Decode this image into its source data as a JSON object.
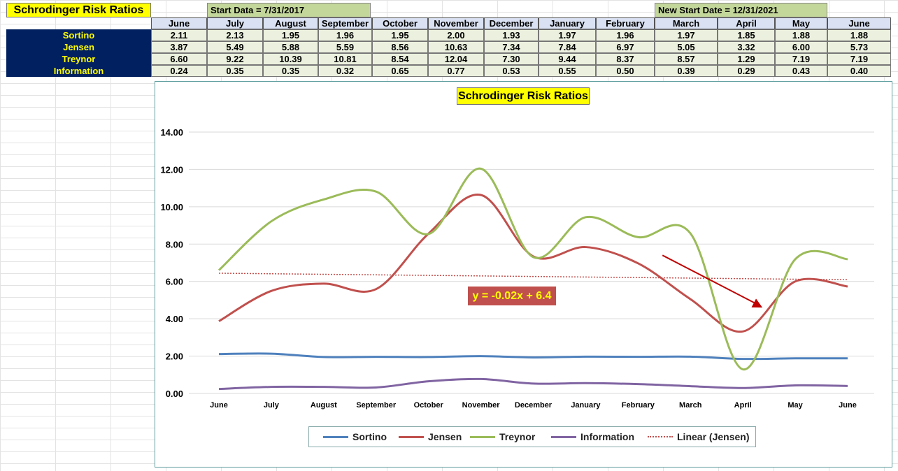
{
  "sheet": {
    "title": "Schrodinger Risk Ratios",
    "start_note": "Start Data = 7/31/2017",
    "new_start_note": "New Start Date = 12/31/2021",
    "months": [
      "June",
      "July",
      "August",
      "September",
      "October",
      "November",
      "December",
      "January",
      "February",
      "March",
      "April",
      "May",
      "June"
    ],
    "rows": [
      {
        "label": "Sortino",
        "values": [
          "2.11",
          "2.13",
          "1.95",
          "1.96",
          "1.95",
          "2.00",
          "1.93",
          "1.97",
          "1.96",
          "1.97",
          "1.85",
          "1.88",
          "1.88"
        ]
      },
      {
        "label": "Jensen",
        "values": [
          "3.87",
          "5.49",
          "5.88",
          "5.59",
          "8.56",
          "10.63",
          "7.34",
          "7.84",
          "6.97",
          "5.05",
          "3.32",
          "6.00",
          "5.73"
        ]
      },
      {
        "label": "Treynor",
        "values": [
          "6.60",
          "9.22",
          "10.39",
          "10.81",
          "8.54",
          "12.04",
          "7.30",
          "9.44",
          "8.37",
          "8.57",
          "1.29",
          "7.19",
          "7.19"
        ]
      },
      {
        "label": "Information",
        "values": [
          "0.24",
          "0.35",
          "0.35",
          "0.32",
          "0.65",
          "0.77",
          "0.53",
          "0.55",
          "0.50",
          "0.39",
          "0.29",
          "0.43",
          "0.40"
        ]
      }
    ]
  },
  "chart_data": {
    "type": "line",
    "title": "Schrodinger Risk Ratios",
    "categories": [
      "June",
      "July",
      "August",
      "September",
      "October",
      "November",
      "December",
      "January",
      "February",
      "March",
      "April",
      "May",
      "June"
    ],
    "ylim": [
      0,
      14
    ],
    "yticks": [
      "0.00",
      "2.00",
      "4.00",
      "6.00",
      "8.00",
      "10.00",
      "12.00",
      "14.00"
    ],
    "grid": true,
    "legend_position": "bottom",
    "series": [
      {
        "name": "Sortino",
        "color": "#4f81bd",
        "values": [
          2.11,
          2.13,
          1.95,
          1.96,
          1.95,
          2.0,
          1.93,
          1.97,
          1.96,
          1.97,
          1.85,
          1.88,
          1.88
        ]
      },
      {
        "name": "Jensen",
        "color": "#c0504d",
        "values": [
          3.87,
          5.49,
          5.88,
          5.59,
          8.56,
          10.63,
          7.34,
          7.84,
          6.97,
          5.05,
          3.32,
          6.0,
          5.73
        ]
      },
      {
        "name": "Treynor",
        "color": "#9bbb59",
        "values": [
          6.6,
          9.22,
          10.39,
          10.81,
          8.54,
          12.04,
          7.3,
          9.44,
          8.37,
          8.57,
          1.29,
          7.19,
          7.19
        ]
      },
      {
        "name": "Information",
        "color": "#8064a2",
        "values": [
          0.24,
          0.35,
          0.35,
          0.32,
          0.65,
          0.77,
          0.53,
          0.55,
          0.5,
          0.39,
          0.29,
          0.43,
          0.4
        ]
      }
    ],
    "trendline": {
      "name": "Linear (Jensen)",
      "color": "#c0504d",
      "slope": -0.02,
      "intercept": 6.4,
      "equation": "y = -0.02x + 6.4"
    },
    "annotation_arrow": {
      "from": {
        "x": "March",
        "y": 7.4
      },
      "to": {
        "x": "April",
        "y": 4.6
      },
      "color": "#c00000"
    }
  }
}
